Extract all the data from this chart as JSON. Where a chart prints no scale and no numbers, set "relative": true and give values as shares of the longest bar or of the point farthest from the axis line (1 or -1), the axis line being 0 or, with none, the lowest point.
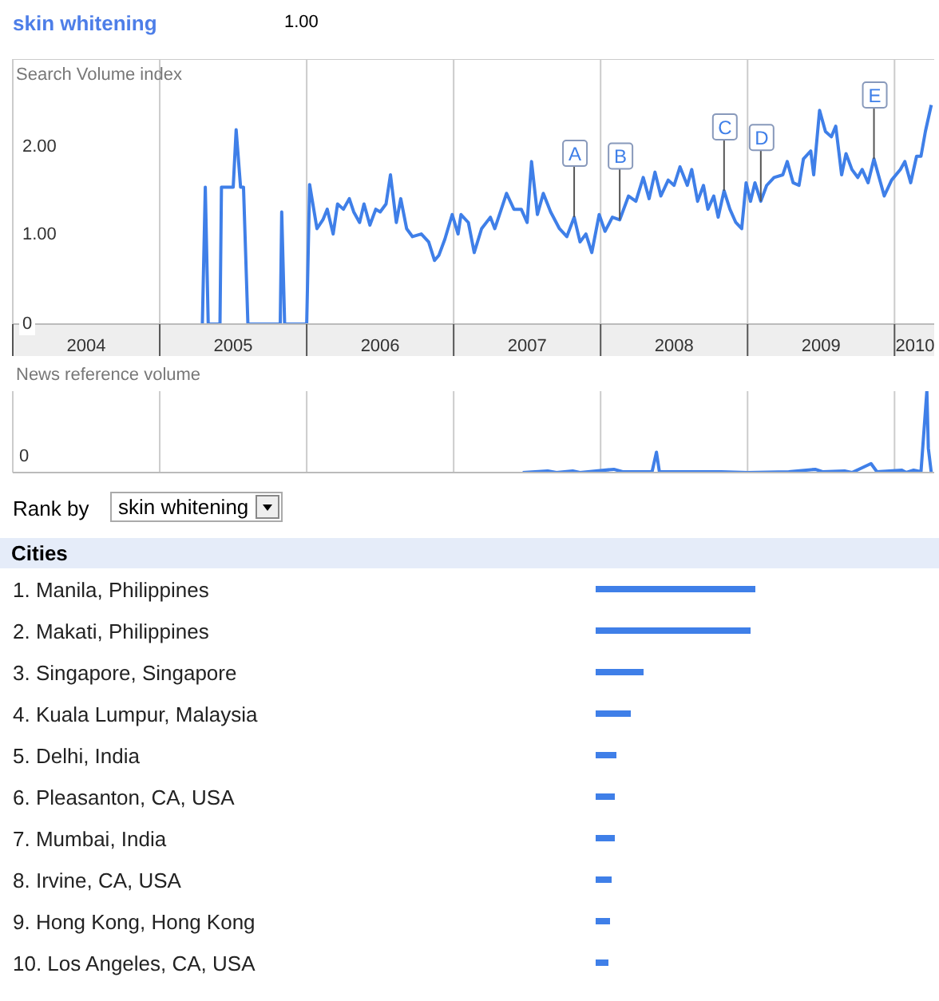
{
  "chart_data": [
    {
      "type": "line",
      "title": "skin whitening",
      "ylabel": "Search Volume index",
      "annotations": [
        "1.00",
        {
          "text": "A",
          "x": 2007.82,
          "y": 1.21
        },
        {
          "text": "B",
          "x": 2008.13,
          "y": 1.18
        },
        {
          "text": "C",
          "x": 2008.84,
          "y": 1.51
        },
        {
          "text": "D",
          "x": 2009.09,
          "y": 1.39
        },
        {
          "text": "E",
          "x": 2009.86,
          "y": 1.87
        }
      ],
      "x": [
        2005.29,
        2005.31,
        2005.33,
        2005.41,
        2005.42,
        2005.5,
        2005.52,
        2005.55,
        2005.57,
        2005.6,
        2005.82,
        2005.83,
        2005.85,
        2006.0,
        2006.02,
        2006.07,
        2006.11,
        2006.14,
        2006.18,
        2006.21,
        2006.25,
        2006.29,
        2006.32,
        2006.36,
        2006.39,
        2006.43,
        2006.47,
        2006.5,
        2006.54,
        2006.57,
        2006.61,
        2006.64,
        2006.68,
        2006.72,
        2006.78,
        2006.83,
        2006.87,
        2006.9,
        2006.94,
        2006.99,
        2007.03,
        2007.05,
        2007.1,
        2007.14,
        2007.19,
        2007.25,
        2007.28,
        2007.36,
        2007.41,
        2007.46,
        2007.5,
        2007.53,
        2007.57,
        2007.61,
        2007.66,
        2007.72,
        2007.77,
        2007.82,
        2007.86,
        2007.9,
        2007.94,
        2007.99,
        2008.03,
        2008.08,
        2008.13,
        2008.19,
        2008.24,
        2008.29,
        2008.33,
        2008.37,
        2008.41,
        2008.46,
        2008.5,
        2008.54,
        2008.59,
        2008.62,
        2008.66,
        2008.7,
        2008.73,
        2008.77,
        2008.8,
        2008.84,
        2008.88,
        2008.92,
        2008.96,
        2008.99,
        2009.02,
        2009.05,
        2009.09,
        2009.13,
        2009.18,
        2009.24,
        2009.27,
        2009.31,
        2009.35,
        2009.38,
        2009.43,
        2009.45,
        2009.49,
        2009.53,
        2009.57,
        2009.6,
        2009.64,
        2009.67,
        2009.71,
        2009.75,
        2009.78,
        2009.82,
        2009.86,
        2009.89,
        2009.93,
        2009.98,
        2010.04,
        2010.07,
        2010.11,
        2010.15,
        2010.18,
        2010.21,
        2010.25
      ],
      "series": [
        {
          "color": "#3f7fe8",
          "values": [
            0,
            1.55,
            0,
            0,
            1.55,
            1.55,
            2.2,
            1.55,
            1.55,
            0,
            0,
            1.27,
            0,
            0,
            1.58,
            1.08,
            1.18,
            1.3,
            1.02,
            1.36,
            1.3,
            1.42,
            1.27,
            1.15,
            1.36,
            1.12,
            1.3,
            1.27,
            1.36,
            1.69,
            1.15,
            1.42,
            1.08,
            0.99,
            1.02,
            0.93,
            0.72,
            0.78,
            0.96,
            1.24,
            1.02,
            1.24,
            1.15,
            0.81,
            1.08,
            1.21,
            1.08,
            1.48,
            1.3,
            1.3,
            1.15,
            1.84,
            1.24,
            1.48,
            1.27,
            1.08,
            0.99,
            1.21,
            0.93,
            1.02,
            0.81,
            1.24,
            1.05,
            1.21,
            1.18,
            1.45,
            1.39,
            1.66,
            1.42,
            1.72,
            1.45,
            1.63,
            1.57,
            1.78,
            1.57,
            1.75,
            1.39,
            1.57,
            1.3,
            1.45,
            1.21,
            1.51,
            1.3,
            1.15,
            1.08,
            1.6,
            1.39,
            1.6,
            1.39,
            1.57,
            1.66,
            1.69,
            1.84,
            1.6,
            1.57,
            1.87,
            1.96,
            1.69,
            2.42,
            2.18,
            2.12,
            2.24,
            1.69,
            1.93,
            1.75,
            1.66,
            1.75,
            1.6,
            1.87,
            1.69,
            1.45,
            1.63,
            1.75,
            1.84,
            1.6,
            1.9,
            1.9,
            2.18,
            2.48
          ]
        }
      ],
      "xlim": [
        2004,
        2010.27
      ],
      "xticks": [
        {
          "value": 2004,
          "label": null
        },
        {
          "value": 2004.5,
          "label": "2004"
        },
        {
          "value": 2005,
          "label": null
        },
        {
          "value": 2005.5,
          "label": "2005"
        },
        {
          "value": 2006,
          "label": null
        },
        {
          "value": 2006.5,
          "label": "2006"
        },
        {
          "value": 2007,
          "label": null
        },
        {
          "value": 2007.5,
          "label": "2007"
        },
        {
          "value": 2008,
          "label": null
        },
        {
          "value": 2008.5,
          "label": "2008"
        },
        {
          "value": 2009,
          "label": null
        },
        {
          "value": 2009.5,
          "label": "2009"
        },
        {
          "value": 2010,
          "label": null
        },
        {
          "value": 2010.14,
          "label": "2010"
        }
      ],
      "ylim": [
        0,
        3
      ],
      "yticks": [
        0,
        {
          "value": 1,
          "label": "1.00"
        },
        {
          "value": 2,
          "label": "2.00"
        }
      ],
      "grid": true
    },
    {
      "type": "line",
      "ylabel": "News reference volume",
      "annotations": [
        "0"
      ],
      "relative": true,
      "x": [
        2007.47,
        2007.64,
        2007.7,
        2007.81,
        2007.86,
        2008.09,
        2008.15,
        2008.35,
        2008.38,
        2008.4,
        2008.59,
        2008.82,
        2009.0,
        2009.28,
        2009.46,
        2009.51,
        2009.66,
        2009.71,
        2009.84,
        2009.88,
        2010.05,
        2010.08,
        2010.13,
        2010.18,
        2010.22,
        2010.23,
        2010.25
      ],
      "series": [
        {
          "color": "#3f7fe8",
          "values": [
            0,
            0.02,
            0,
            0.02,
            0,
            0.04,
            0.01,
            0.01,
            0.25,
            0.01,
            0.01,
            0.01,
            0,
            0.01,
            0.04,
            0.01,
            0.02,
            0,
            0.11,
            0.01,
            0.03,
            0,
            0.03,
            0.01,
            1,
            0.3,
            0
          ]
        }
      ],
      "xlim": [
        2004,
        2010.27
      ],
      "xticks": [
        {
          "value": 2004,
          "label": null
        },
        {
          "value": 2005,
          "label": null
        },
        {
          "value": 2006,
          "label": null
        },
        {
          "value": 2007,
          "label": null
        },
        {
          "value": 2008,
          "label": null
        },
        {
          "value": 2009,
          "label": null
        },
        {
          "value": 2010,
          "label": null
        }
      ],
      "tick_labels": false,
      "grid": "x"
    },
    {
      "type": "bar",
      "orientation": "horizontal",
      "relative": true,
      "title": "Cities",
      "annotations": [
        "Rank by",
        "skin whitening"
      ],
      "categories": [
        "1. Manila, Philippines",
        "2. Makati, Philippines",
        "3. Singapore, Singapore",
        "4. Kuala Lumpur, Malaysia",
        "5. Delhi, India",
        "6. Pleasanton, CA, USA",
        "7. Mumbai, India",
        "8. Irvine, CA, USA",
        "9. Hong Kong, Hong Kong",
        "10. Los Angeles, CA, USA"
      ],
      "values": [
        1,
        0.97,
        0.3,
        0.22,
        0.13,
        0.12,
        0.12,
        0.1,
        0.09,
        0.08
      ],
      "color": "#3f7fe8"
    }
  ]
}
